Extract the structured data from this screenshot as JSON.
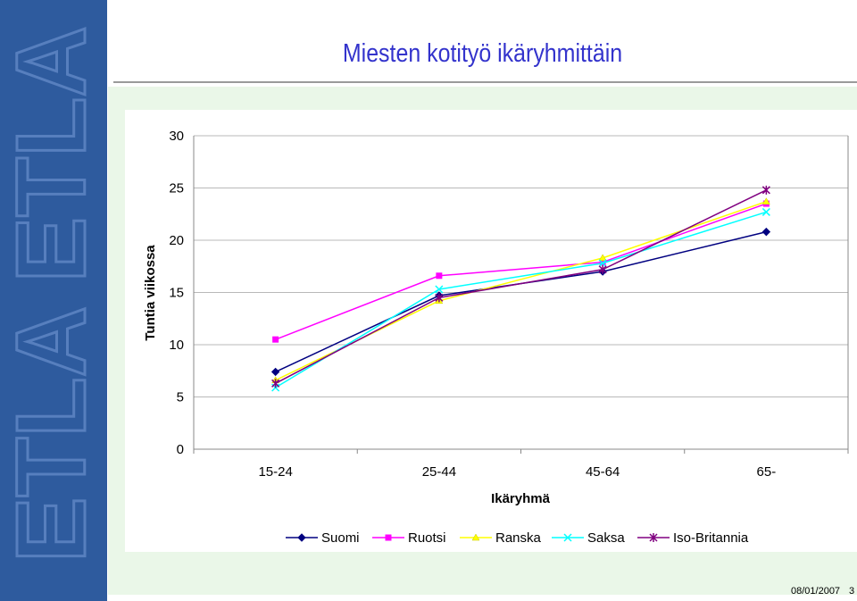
{
  "slide": {
    "title": "Miesten kotityö ikäryhmittäin",
    "footer_date": "08/01/2007",
    "page_number": "3",
    "logo_text": "ETLA",
    "colors": {
      "sidebar": "#2e5b9e",
      "title": "#3333cc",
      "panel": "#eaf7e8"
    }
  },
  "chart_data": {
    "type": "line",
    "title": "",
    "xlabel": "Ikäryhmä",
    "ylabel": "Tuntia viikossa",
    "categories": [
      "15-24",
      "25-44",
      "45-64",
      "65-"
    ],
    "ylim": [
      0,
      30
    ],
    "yticks": [
      "0",
      "5",
      "10",
      "15",
      "20",
      "25",
      "30"
    ],
    "grid": "horizontal",
    "legend_position": "bottom",
    "series": [
      {
        "name": "Suomi",
        "color": "#000080",
        "marker": "diamond",
        "values": [
          7.4,
          14.7,
          17.0,
          20.8
        ]
      },
      {
        "name": "Ruotsi",
        "color": "#ff00ff",
        "marker": "square",
        "values": [
          10.5,
          16.6,
          17.9,
          23.5
        ]
      },
      {
        "name": "Ranska",
        "color": "#ffff00",
        "marker": "triangle",
        "values": [
          6.6,
          14.2,
          18.3,
          23.7
        ]
      },
      {
        "name": "Saksa",
        "color": "#00ffff",
        "marker": "x",
        "values": [
          5.9,
          15.3,
          17.8,
          22.7
        ]
      },
      {
        "name": "Iso-Britannia",
        "color": "#800080",
        "marker": "star",
        "values": [
          6.3,
          14.5,
          17.2,
          24.8
        ]
      }
    ]
  }
}
